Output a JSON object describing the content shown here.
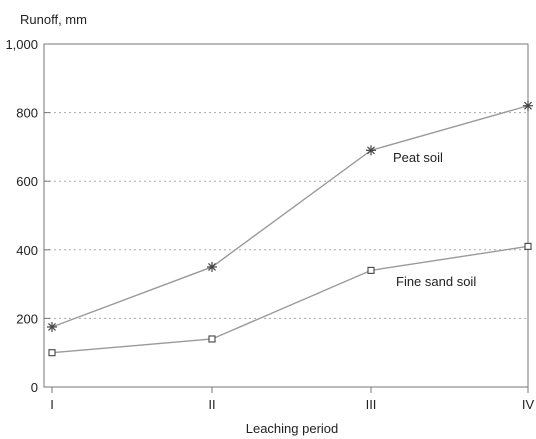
{
  "chart_data": {
    "type": "line",
    "ylabel": "Runoff, mm",
    "xlabel": "Leaching period",
    "categories": [
      "I",
      "II",
      "III",
      "IV"
    ],
    "ylim": [
      0,
      1000
    ],
    "yticks": [
      0,
      200,
      400,
      600,
      800,
      1000
    ],
    "ytick_labels": [
      "0",
      "200",
      "400",
      "600",
      "800",
      "1,000"
    ],
    "grid": "horizontal-dotted",
    "series": [
      {
        "name": "Peat soil",
        "marker": "asterisk",
        "values": [
          175,
          350,
          690,
          820
        ]
      },
      {
        "name": "Fine sand soil",
        "marker": "square",
        "values": [
          100,
          140,
          340,
          410
        ]
      }
    ],
    "colors": {
      "line": "#9a9a9a",
      "marker": "#444444",
      "axis": "#777777",
      "grid": "#aaaaaa"
    }
  }
}
